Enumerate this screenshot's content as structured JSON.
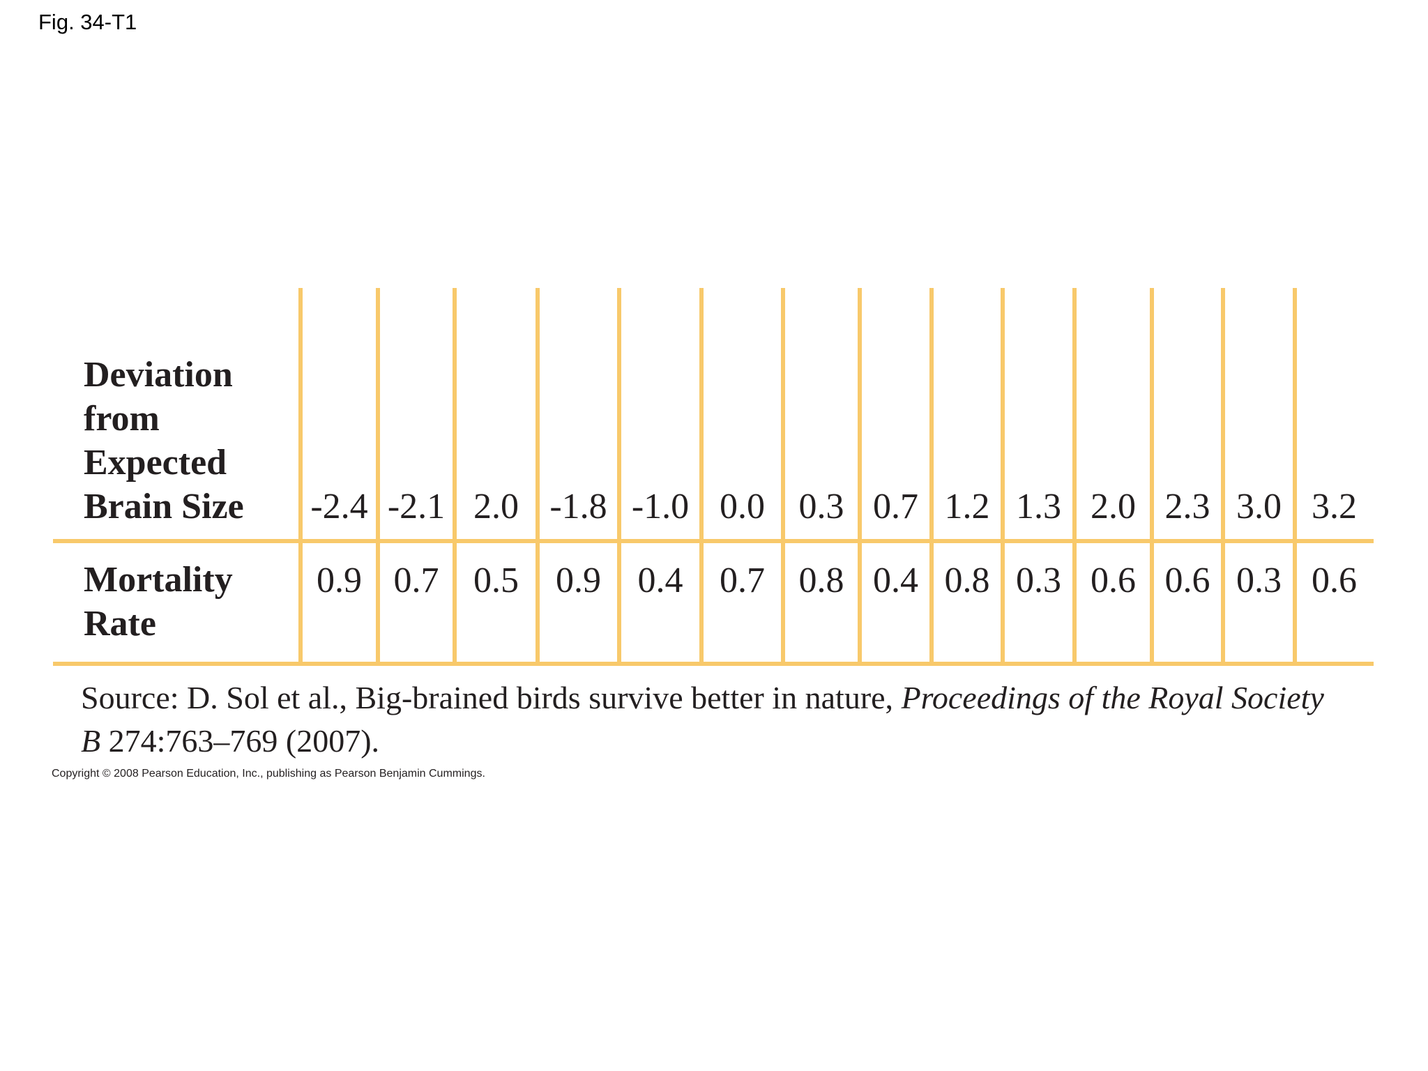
{
  "figure_label": "Fig. 34-T1",
  "table": {
    "rows": [
      {
        "header": "Deviation from Expected Brain Size",
        "cells": [
          "-2.4",
          "-2.1",
          "2.0",
          "-1.8",
          "-1.0",
          "0.0",
          "0.3",
          "0.7",
          "1.2",
          "1.3",
          "2.0",
          "2.3",
          "3.0",
          "3.2"
        ]
      },
      {
        "header": "Mortality Rate",
        "cells": [
          "0.9",
          "0.7",
          "0.5",
          "0.9",
          "0.4",
          "0.7",
          "0.8",
          "0.4",
          "0.8",
          "0.3",
          "0.6",
          "0.6",
          "0.3",
          "0.6"
        ]
      }
    ]
  },
  "source": {
    "prefix": "Source: D. Sol et al., Big-brained birds survive better in nature, ",
    "journal": "Proceedings of the Royal Society B",
    "citation": " 274:763–769 (2007)."
  },
  "copyright": "Copyright © 2008 Pearson Education, Inc., publishing as Pearson Benjamin Cummings."
}
